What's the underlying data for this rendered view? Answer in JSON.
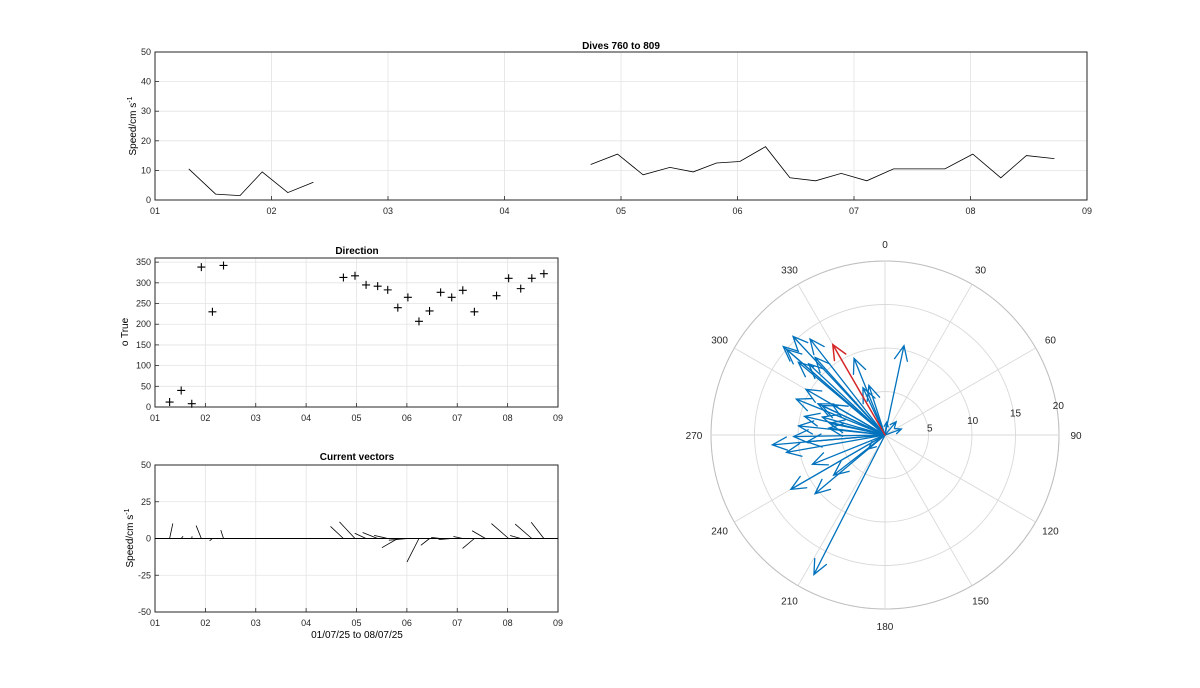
{
  "chart_data": [
    {
      "type": "line",
      "title": "Dives 760 to 809",
      "ylabel": "Speed/cm s",
      "ylabel_sup": "-1",
      "xlim": [
        1,
        9
      ],
      "ylim": [
        0,
        50
      ],
      "xticks": [
        "01",
        "02",
        "03",
        "04",
        "05",
        "06",
        "07",
        "08",
        "09"
      ],
      "yticks": [
        "0",
        "10",
        "20",
        "30",
        "40",
        "50"
      ],
      "grid": true,
      "segments": [
        {
          "x": [
            1.29,
            1.52,
            1.73,
            1.92,
            2.14,
            2.36
          ],
          "y": [
            10.5,
            2.0,
            1.5,
            9.5,
            2.5,
            6.0
          ]
        },
        {
          "x": [
            4.74,
            4.97,
            5.19,
            5.42,
            5.62,
            5.82,
            6.02,
            6.24,
            6.45,
            6.67,
            6.89,
            7.11,
            7.34,
            7.56,
            7.78,
            8.02,
            8.26,
            8.48,
            8.72
          ],
          "y": [
            12.0,
            15.5,
            8.5,
            11.0,
            9.5,
            12.5,
            13.0,
            18.0,
            7.5,
            6.5,
            9.0,
            6.5,
            10.5,
            10.5,
            10.5,
            15.5,
            7.5,
            15.0,
            14.0
          ]
        }
      ],
      "line_color": "#000000"
    },
    {
      "type": "scatter",
      "title": "Direction",
      "ylabel": "o True",
      "xlim": [
        1,
        9
      ],
      "ylim": [
        0,
        360
      ],
      "xticks": [
        "01",
        "02",
        "03",
        "04",
        "05",
        "06",
        "07",
        "08",
        "09"
      ],
      "yticks": [
        "0",
        "50",
        "100",
        "150",
        "200",
        "250",
        "300",
        "350"
      ],
      "grid": true,
      "marker": "+",
      "x": [
        1.29,
        1.52,
        1.73,
        1.92,
        2.14,
        2.36,
        4.74,
        4.97,
        5.19,
        5.42,
        5.62,
        5.82,
        6.02,
        6.24,
        6.45,
        6.67,
        6.89,
        7.11,
        7.34,
        7.78,
        8.02,
        8.26,
        8.48,
        8.72
      ],
      "y": [
        12,
        40,
        8,
        338,
        230,
        342,
        313,
        317,
        295,
        292,
        283,
        240,
        265,
        207,
        232,
        277,
        265,
        282,
        230,
        269,
        311,
        286,
        311,
        322
      ]
    },
    {
      "type": "line",
      "title": "Current vectors",
      "ylabel": "Speed/cm s",
      "ylabel_sup": "-1",
      "xlabel": "01/07/25 to 08/07/25",
      "xlim": [
        1,
        9
      ],
      "ylim": [
        -50,
        50
      ],
      "xticks": [
        "01",
        "02",
        "03",
        "04",
        "05",
        "06",
        "07",
        "08",
        "09"
      ],
      "yticks": [
        "-50",
        "-25",
        "0",
        "25",
        "50"
      ],
      "grid": true,
      "vectors": [
        {
          "x": 1.29,
          "speed": 10.5,
          "dir": 12
        },
        {
          "x": 1.52,
          "speed": 2.0,
          "dir": 40
        },
        {
          "x": 1.73,
          "speed": 1.5,
          "dir": 8
        },
        {
          "x": 1.92,
          "speed": 9.5,
          "dir": 338
        },
        {
          "x": 2.14,
          "speed": 2.5,
          "dir": 230
        },
        {
          "x": 2.36,
          "speed": 6.0,
          "dir": 342
        },
        {
          "x": 4.74,
          "speed": 12.0,
          "dir": 313
        },
        {
          "x": 4.97,
          "speed": 15.5,
          "dir": 317
        },
        {
          "x": 5.19,
          "speed": 8.5,
          "dir": 295
        },
        {
          "x": 5.42,
          "speed": 11.0,
          "dir": 292
        },
        {
          "x": 5.62,
          "speed": 9.5,
          "dir": 283
        },
        {
          "x": 5.82,
          "speed": 12.5,
          "dir": 240
        },
        {
          "x": 6.02,
          "speed": 13.0,
          "dir": 265
        },
        {
          "x": 6.24,
          "speed": 18.0,
          "dir": 207
        },
        {
          "x": 6.45,
          "speed": 7.5,
          "dir": 232
        },
        {
          "x": 6.67,
          "speed": 6.5,
          "dir": 277
        },
        {
          "x": 6.89,
          "speed": 9.0,
          "dir": 265
        },
        {
          "x": 7.11,
          "speed": 6.5,
          "dir": 282
        },
        {
          "x": 7.34,
          "speed": 10.5,
          "dir": 230
        },
        {
          "x": 7.56,
          "speed": 10.5,
          "dir": 300
        },
        {
          "x": 7.78,
          "speed": 10.5,
          "dir": 269
        },
        {
          "x": 8.02,
          "speed": 15.5,
          "dir": 311
        },
        {
          "x": 8.26,
          "speed": 7.5,
          "dir": 286
        },
        {
          "x": 8.48,
          "speed": 15.0,
          "dir": 311
        },
        {
          "x": 8.72,
          "speed": 14.0,
          "dir": 322
        }
      ],
      "line_color": "#000000"
    },
    {
      "type": "scatter",
      "subtype": "polar-compass",
      "angle_labels": [
        "0",
        "30",
        "60",
        "90",
        "120",
        "150",
        "180",
        "210",
        "240",
        "270",
        "300",
        "330"
      ],
      "radius_labels": [
        "5",
        "10",
        "15",
        "20"
      ],
      "rmax": 20,
      "arrow_color": "#0072BD",
      "highlight_color": "#D62728",
      "vectors": [
        {
          "r": 10.5,
          "theta": 12
        },
        {
          "r": 2.0,
          "theta": 40
        },
        {
          "r": 1.5,
          "theta": 8
        },
        {
          "r": 9.5,
          "theta": 338
        },
        {
          "r": 2.5,
          "theta": 230
        },
        {
          "r": 6.0,
          "theta": 342
        },
        {
          "r": 12.0,
          "theta": 313
        },
        {
          "r": 15.5,
          "theta": 317
        },
        {
          "r": 8.5,
          "theta": 295
        },
        {
          "r": 11.0,
          "theta": 292
        },
        {
          "r": 9.5,
          "theta": 283
        },
        {
          "r": 12.5,
          "theta": 240
        },
        {
          "r": 13.0,
          "theta": 265
        },
        {
          "r": 18.0,
          "theta": 207
        },
        {
          "r": 7.5,
          "theta": 232
        },
        {
          "r": 6.5,
          "theta": 277
        },
        {
          "r": 9.0,
          "theta": 265
        },
        {
          "r": 6.5,
          "theta": 282
        },
        {
          "r": 10.5,
          "theta": 230
        },
        {
          "r": 10.5,
          "theta": 300
        },
        {
          "r": 10.5,
          "theta": 269
        },
        {
          "r": 15.5,
          "theta": 311
        },
        {
          "r": 7.5,
          "theta": 286
        },
        {
          "r": 15.0,
          "theta": 311
        },
        {
          "r": 14.0,
          "theta": 322
        },
        {
          "r": 8.0,
          "theta": 295
        },
        {
          "r": 11.5,
          "theta": 260
        },
        {
          "r": 9.0,
          "theta": 248
        },
        {
          "r": 7.0,
          "theta": 300
        },
        {
          "r": 10.0,
          "theta": 276
        },
        {
          "r": 12.0,
          "theta": 318
        },
        {
          "r": 6.0,
          "theta": 335
        },
        {
          "r": 2.0,
          "theta": 70
        },
        {
          "r": 13.0,
          "theta": 310
        }
      ],
      "highlight": {
        "r": 12.0,
        "theta": 330
      }
    }
  ]
}
